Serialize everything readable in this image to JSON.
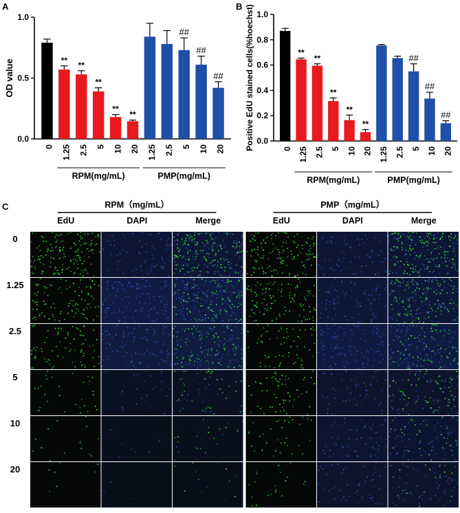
{
  "panel_labels": {
    "a": "A",
    "b": "B",
    "c": "C"
  },
  "colors": {
    "control": "#000000",
    "rpm": "#e8191f",
    "pmp": "#1f4fa8"
  },
  "chart_data": [
    {
      "type": "bar",
      "panel": "A",
      "ylabel": "OD value",
      "ylim": [
        0,
        1.0
      ],
      "yticks": [
        0.0,
        0.5,
        1.0
      ],
      "ytick_labels": [
        "0.0",
        "0.5",
        "1.0"
      ],
      "categories": [
        "0",
        "1.25",
        "2.5",
        "5",
        "10",
        "20",
        "1.25",
        "2.5",
        "5",
        "10",
        "20"
      ],
      "groups": [
        {
          "label": "RPM(mg/mL)",
          "from": 1,
          "to": 5
        },
        {
          "label": "PMP(mg/mL)",
          "from": 6,
          "to": 10
        }
      ],
      "bars": [
        {
          "group": "control",
          "value": 0.79,
          "error": 0.03,
          "sig": ""
        },
        {
          "group": "rpm",
          "value": 0.57,
          "error": 0.03,
          "sig": "**"
        },
        {
          "group": "rpm",
          "value": 0.53,
          "error": 0.03,
          "sig": "**"
        },
        {
          "group": "rpm",
          "value": 0.39,
          "error": 0.03,
          "sig": "**"
        },
        {
          "group": "rpm",
          "value": 0.18,
          "error": 0.02,
          "sig": "**"
        },
        {
          "group": "rpm",
          "value": 0.145,
          "error": 0.01,
          "sig": "**"
        },
        {
          "group": "pmp",
          "value": 0.84,
          "error": 0.11,
          "sig": ""
        },
        {
          "group": "pmp",
          "value": 0.78,
          "error": 0.11,
          "sig": ""
        },
        {
          "group": "pmp",
          "value": 0.73,
          "error": 0.1,
          "sig": "##"
        },
        {
          "group": "pmp",
          "value": 0.61,
          "error": 0.07,
          "sig": "##"
        },
        {
          "group": "pmp",
          "value": 0.42,
          "error": 0.05,
          "sig": "##"
        }
      ]
    },
    {
      "type": "bar",
      "panel": "B",
      "ylabel": "Positive EdU stained cells(%hoechst)",
      "ylim": [
        0,
        1.0
      ],
      "yticks": [
        0.0,
        0.2,
        0.4,
        0.6,
        0.8,
        1.0
      ],
      "ytick_labels": [
        "0.0",
        "0.2",
        "0.4",
        "0.6",
        "0.8",
        "1.0"
      ],
      "categories": [
        "0",
        "1.25",
        "2.5",
        "5",
        "10",
        "20",
        "1.25",
        "2.5",
        "5",
        "10",
        "20"
      ],
      "groups": [
        {
          "label": "RPM(mg/mL)",
          "from": 1,
          "to": 5
        },
        {
          "label": "PMP(mg/mL)",
          "from": 6,
          "to": 10
        }
      ],
      "bars": [
        {
          "group": "control",
          "value": 0.87,
          "error": 0.02,
          "sig": ""
        },
        {
          "group": "rpm",
          "value": 0.645,
          "error": 0.01,
          "sig": "**"
        },
        {
          "group": "rpm",
          "value": 0.595,
          "error": 0.015,
          "sig": "**"
        },
        {
          "group": "rpm",
          "value": 0.315,
          "error": 0.025,
          "sig": "**"
        },
        {
          "group": "rpm",
          "value": 0.165,
          "error": 0.04,
          "sig": "**"
        },
        {
          "group": "rpm",
          "value": 0.07,
          "error": 0.02,
          "sig": "**"
        },
        {
          "group": "pmp",
          "value": 0.755,
          "error": 0.008,
          "sig": ""
        },
        {
          "group": "pmp",
          "value": 0.655,
          "error": 0.015,
          "sig": ""
        },
        {
          "group": "pmp",
          "value": 0.55,
          "error": 0.06,
          "sig": "##"
        },
        {
          "group": "pmp",
          "value": 0.335,
          "error": 0.05,
          "sig": "##"
        },
        {
          "group": "pmp",
          "value": 0.14,
          "error": 0.02,
          "sig": "##"
        }
      ]
    }
  ],
  "micrograph_grid": {
    "panel": "C",
    "groups": [
      {
        "label": "RPM（mg/mL）",
        "columns": [
          "EdU",
          "DAPI",
          "Merge"
        ]
      },
      {
        "label": "PMP（mg/mL）",
        "columns": [
          "EdU",
          "DAPI",
          "Merge"
        ]
      }
    ],
    "rows": [
      {
        "label": "0",
        "rpm": {
          "green": 0.9,
          "blue": 0.55
        },
        "pmp": {
          "green": 0.85,
          "blue": 0.55
        }
      },
      {
        "label": "1.25",
        "rpm": {
          "green": 0.6,
          "blue": 0.85
        },
        "pmp": {
          "green": 0.65,
          "blue": 0.6
        }
      },
      {
        "label": "2.5",
        "rpm": {
          "green": 0.45,
          "blue": 0.75
        },
        "pmp": {
          "green": 0.4,
          "blue": 0.8
        }
      },
      {
        "label": "5",
        "rpm": {
          "green": 0.18,
          "blue": 0.2
        },
        "pmp": {
          "green": 0.35,
          "blue": 0.4
        }
      },
      {
        "label": "10",
        "rpm": {
          "green": 0.08,
          "blue": 0.08
        },
        "pmp": {
          "green": 0.2,
          "blue": 0.45
        }
      },
      {
        "label": "20",
        "rpm": {
          "green": 0.04,
          "blue": 0.04
        },
        "pmp": {
          "green": 0.12,
          "blue": 0.4
        }
      }
    ]
  }
}
